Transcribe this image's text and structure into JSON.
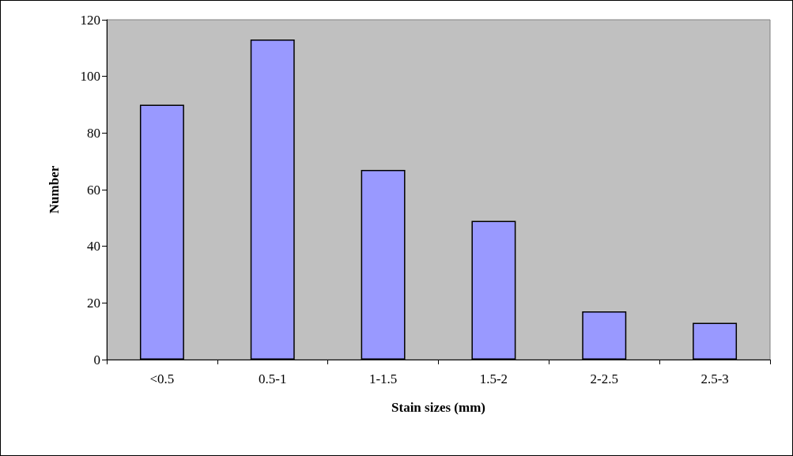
{
  "chart_data": {
    "type": "bar",
    "xlabel": "Stain sizes (mm)",
    "ylabel": "Number",
    "categories": [
      "<0.5",
      "0.5-1",
      "1-1.5",
      "1.5-2",
      "2-2.5",
      "2.5-3"
    ],
    "values": [
      90,
      113,
      67,
      49,
      17,
      13
    ],
    "color": "#9999ff",
    "ylim": [
      0,
      120
    ],
    "yticks": [
      0,
      20,
      40,
      60,
      80,
      100,
      120
    ],
    "grid": false
  }
}
